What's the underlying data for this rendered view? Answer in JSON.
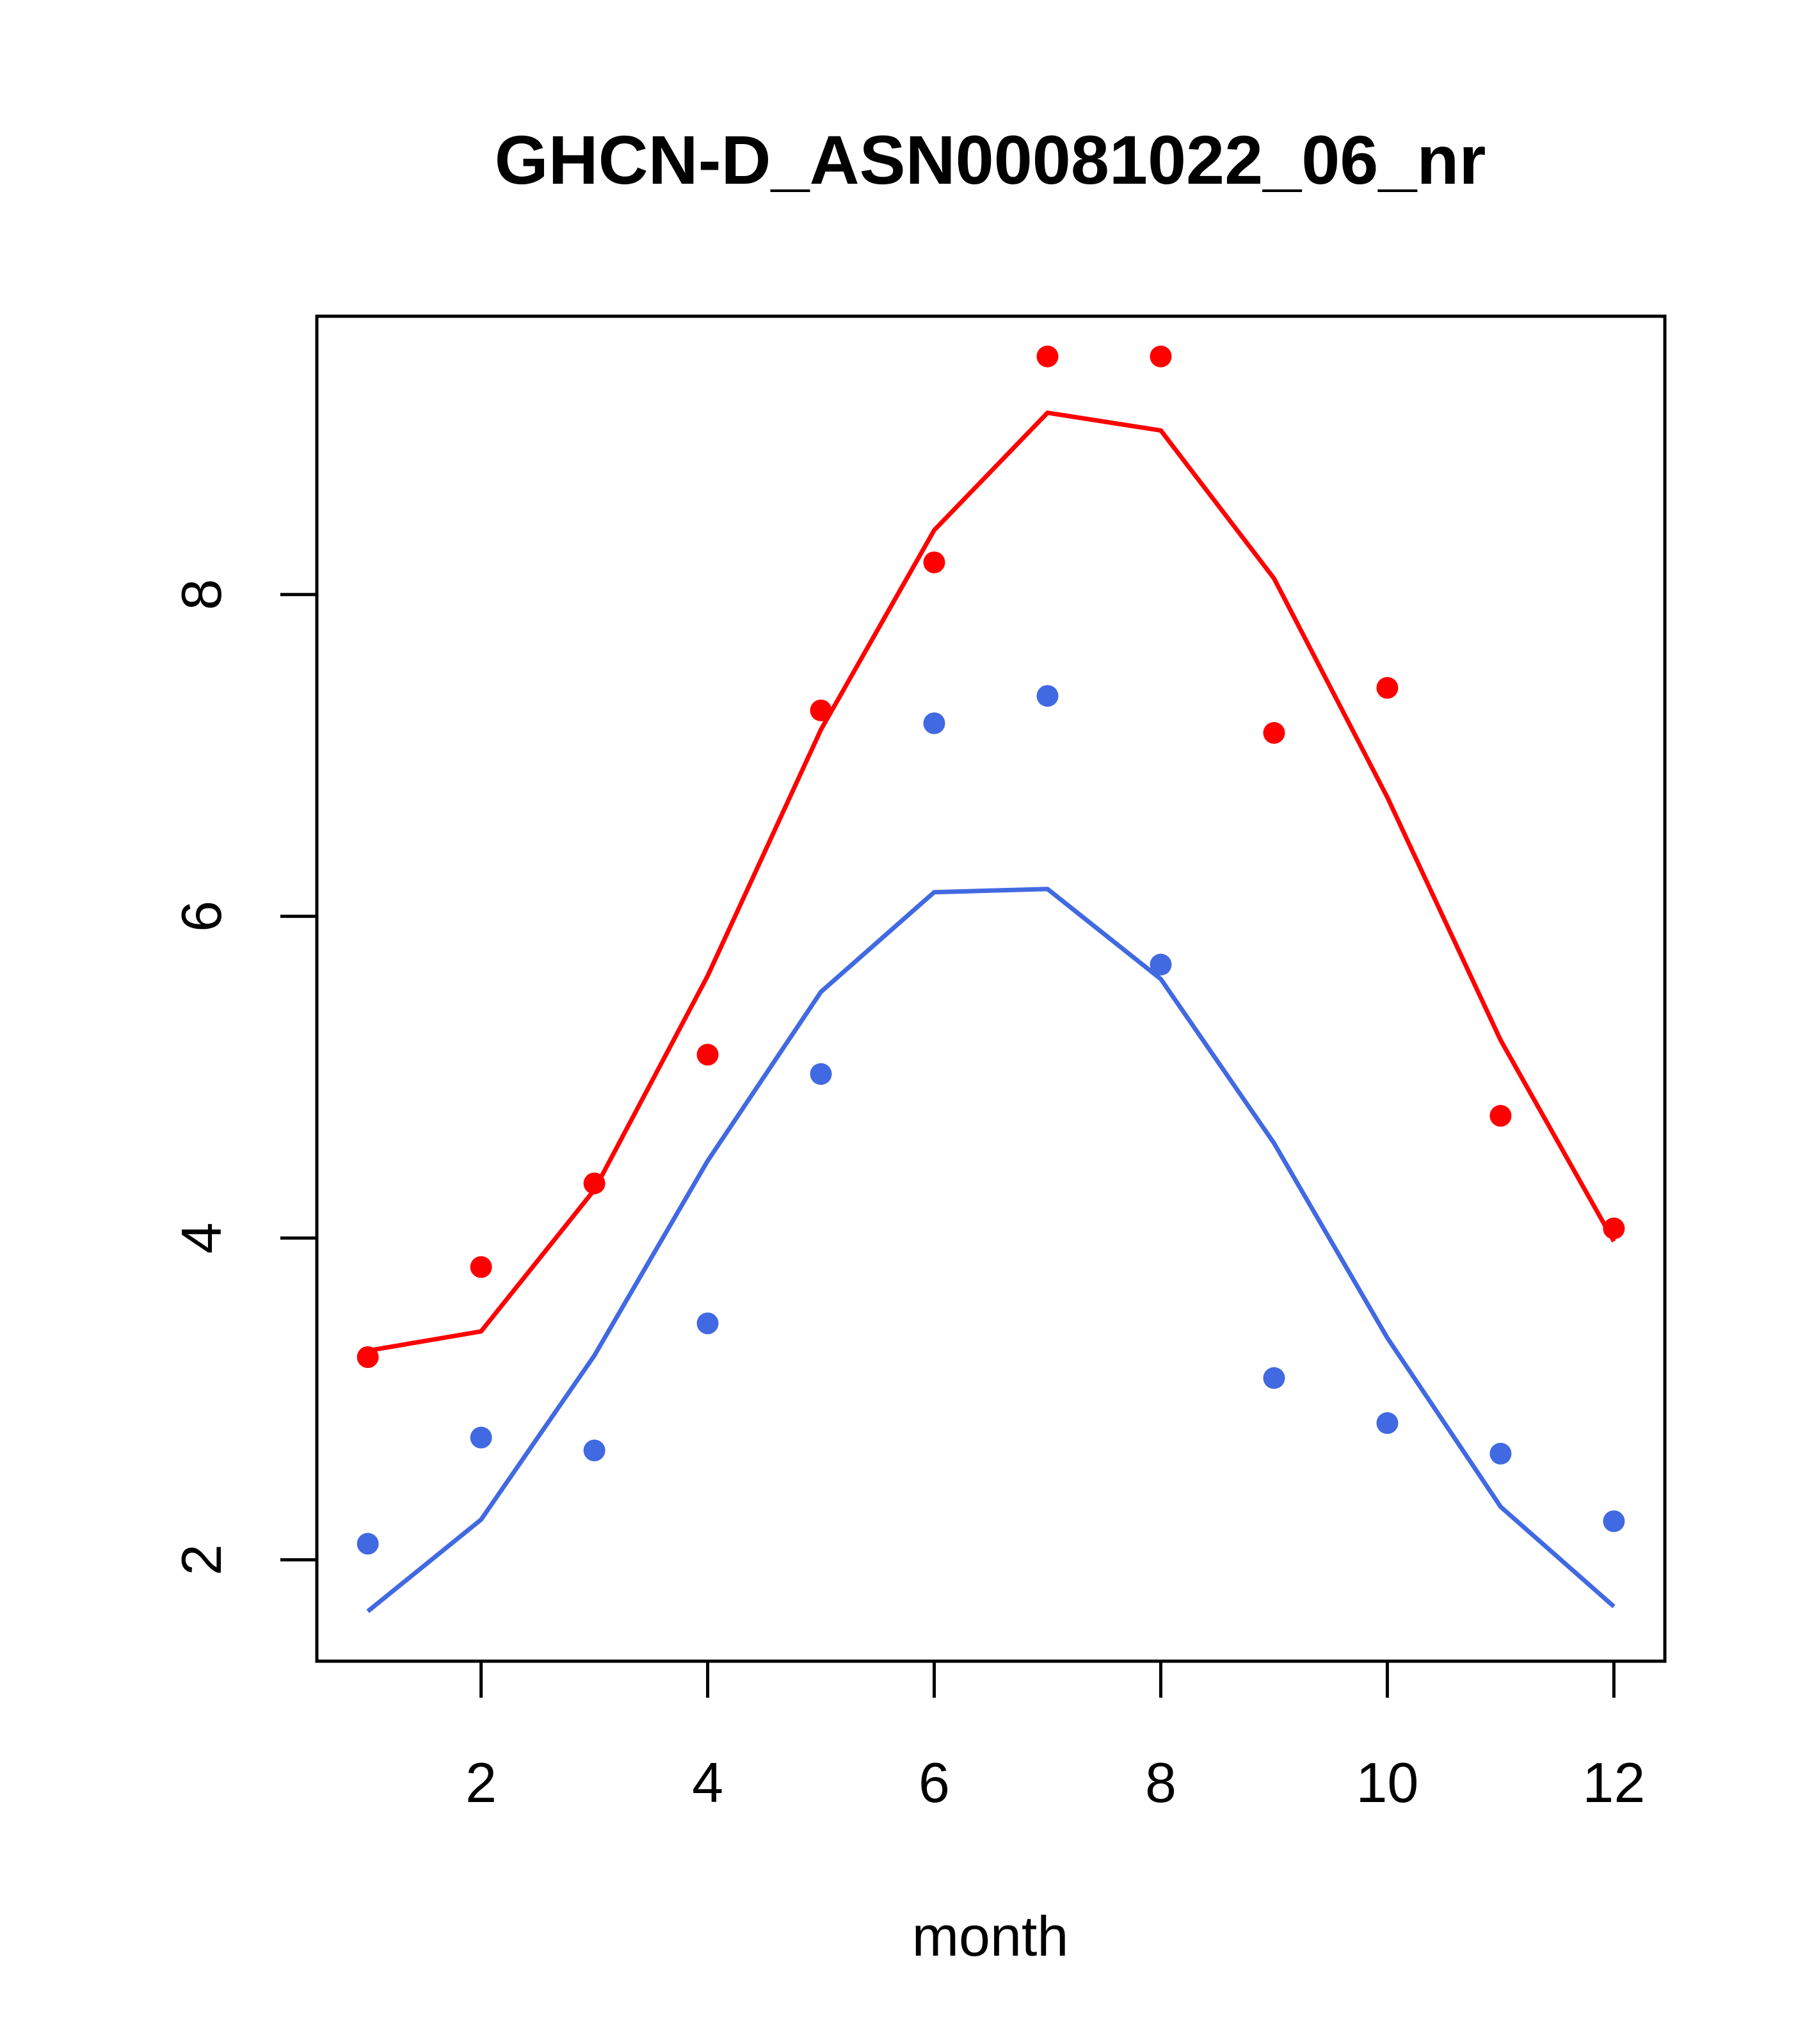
{
  "chart_data": {
    "type": "line",
    "title": "GHCN-D_ASN00081022_06_nr",
    "xlabel": "month",
    "ylabel": "",
    "xlim": [
      0.55,
      12.45
    ],
    "ylim": [
      1.37,
      9.73
    ],
    "x_ticks": [
      2,
      4,
      6,
      8,
      10,
      12
    ],
    "y_ticks": [
      2,
      4,
      6,
      8
    ],
    "grid": false,
    "legend": "none",
    "series": [
      {
        "color": "#ff0000",
        "x": [
          1,
          2,
          3,
          4,
          5,
          6,
          7,
          8,
          9,
          10,
          11,
          12
        ],
        "points": [
          3.26,
          3.82,
          4.34,
          5.14,
          7.28,
          8.2,
          9.48,
          9.48,
          7.14,
          7.42,
          4.76,
          4.06
        ],
        "line": [
          3.3,
          3.42,
          4.3,
          5.63,
          7.16,
          8.4,
          9.13,
          9.02,
          8.1,
          6.74,
          5.23,
          3.98
        ]
      },
      {
        "color": "#4169e1",
        "x": [
          1,
          2,
          3,
          4,
          5,
          6,
          7,
          8,
          9,
          10,
          11,
          12
        ],
        "points": [
          2.1,
          2.76,
          2.68,
          3.47,
          5.02,
          7.2,
          7.37,
          5.7,
          3.13,
          2.85,
          2.66,
          2.24
        ],
        "line": [
          1.68,
          2.25,
          3.27,
          4.48,
          5.53,
          6.15,
          6.17,
          5.61,
          4.59,
          3.38,
          2.33,
          1.71
        ]
      }
    ]
  }
}
